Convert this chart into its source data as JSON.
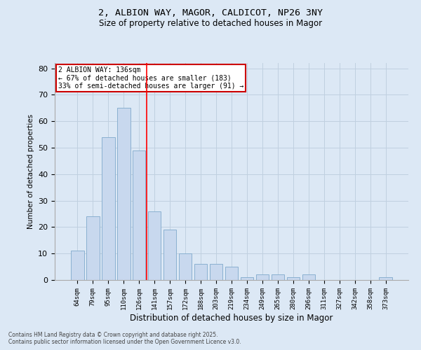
{
  "title1": "2, ALBION WAY, MAGOR, CALDICOT, NP26 3NY",
  "title2": "Size of property relative to detached houses in Magor",
  "xlabel": "Distribution of detached houses by size in Magor",
  "ylabel": "Number of detached properties",
  "categories": [
    "64sqm",
    "79sqm",
    "95sqm",
    "110sqm",
    "126sqm",
    "141sqm",
    "157sqm",
    "172sqm",
    "188sqm",
    "203sqm",
    "219sqm",
    "234sqm",
    "249sqm",
    "265sqm",
    "280sqm",
    "296sqm",
    "311sqm",
    "327sqm",
    "342sqm",
    "358sqm",
    "373sqm"
  ],
  "values": [
    11,
    24,
    54,
    65,
    49,
    26,
    19,
    10,
    6,
    6,
    5,
    1,
    2,
    2,
    1,
    2,
    0,
    0,
    0,
    0,
    1
  ],
  "bar_color": "#c8d8ee",
  "bar_edge_color": "#8ab0d0",
  "red_line_x": 4.5,
  "annotation_text": "2 ALBION WAY: 136sqm\n← 67% of detached houses are smaller (183)\n33% of semi-detached houses are larger (91) →",
  "annotation_box_color": "#ffffff",
  "annotation_box_edge": "#cc0000",
  "ylim": [
    0,
    82
  ],
  "yticks": [
    0,
    10,
    20,
    30,
    40,
    50,
    60,
    70,
    80
  ],
  "grid_color": "#c0d0e0",
  "background_color": "#dce8f5",
  "footer1": "Contains HM Land Registry data © Crown copyright and database right 2025.",
  "footer2": "Contains public sector information licensed under the Open Government Licence v3.0."
}
